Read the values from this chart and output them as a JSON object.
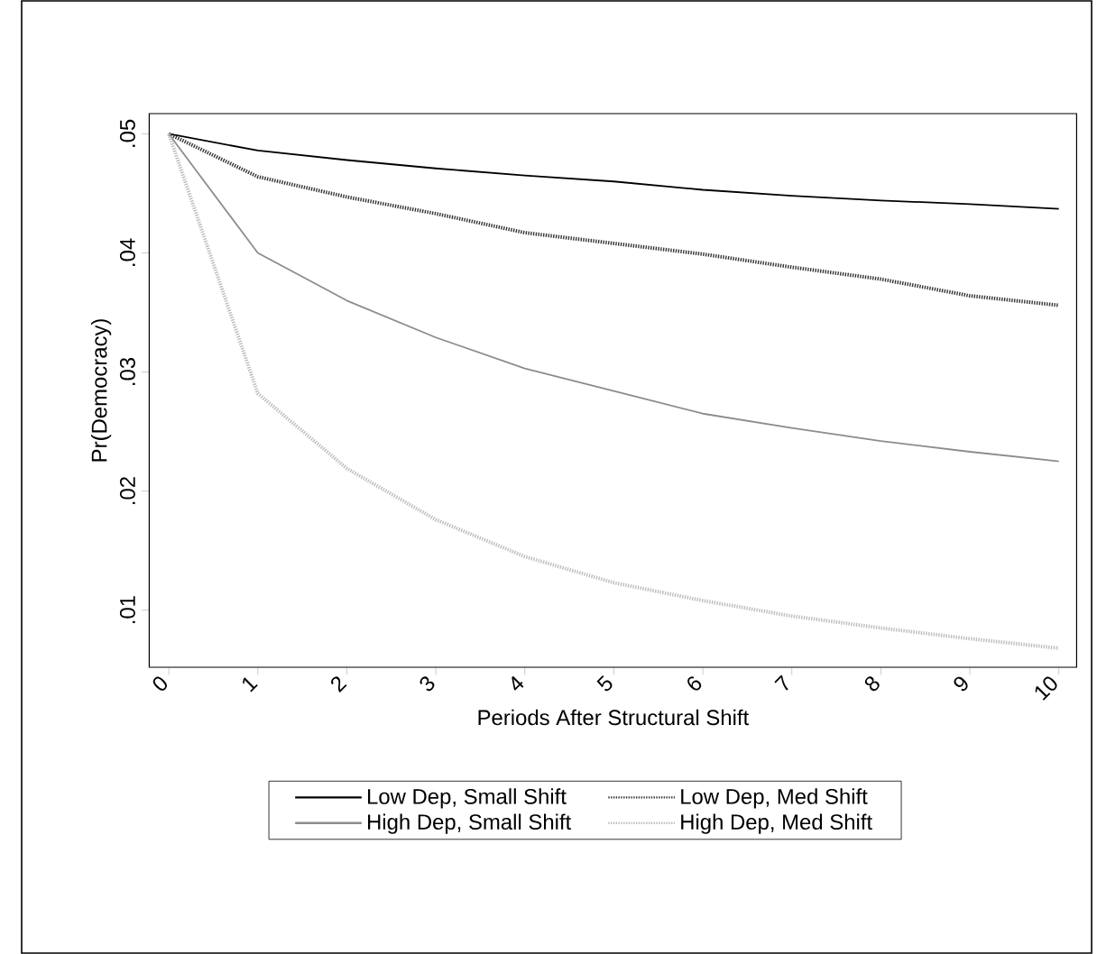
{
  "chart_data": {
    "type": "line",
    "xlabel": "Periods After Structural Shift",
    "ylabel": "Pr(Democracy)",
    "x": [
      0,
      1,
      2,
      3,
      4,
      5,
      6,
      7,
      8,
      9,
      10
    ],
    "series": [
      {
        "name": "Low Dep, Small Shift",
        "color": "#000000",
        "line_style": "solid",
        "values": [
          0.05,
          0.0486,
          0.0478,
          0.0471,
          0.0465,
          0.046,
          0.0453,
          0.0448,
          0.0444,
          0.0441,
          0.0437
        ]
      },
      {
        "name": "Low Dep, Med Shift",
        "color": "#333333",
        "line_style": "dotted",
        "values": [
          0.05,
          0.0464,
          0.0447,
          0.0433,
          0.0417,
          0.0408,
          0.0399,
          0.0388,
          0.0378,
          0.0364,
          0.0356
        ]
      },
      {
        "name": "High Dep, Small Shift",
        "color": "#8c8c8c",
        "line_style": "solid",
        "values": [
          0.05,
          0.04,
          0.036,
          0.0329,
          0.0303,
          0.0284,
          0.0265,
          0.0253,
          0.0242,
          0.0233,
          0.0225
        ]
      },
      {
        "name": "High Dep, Med Shift",
        "color": "#bdbdbd",
        "line_style": "dotted",
        "values": [
          0.05,
          0.0282,
          0.0219,
          0.0176,
          0.0145,
          0.0123,
          0.0108,
          0.0095,
          0.0085,
          0.0076,
          0.0068
        ]
      }
    ],
    "xlim": [
      -0.22,
      10.2
    ],
    "ylim": [
      0.0052,
      0.0517
    ],
    "xticks": [
      0,
      1,
      2,
      3,
      4,
      5,
      6,
      7,
      8,
      9,
      10
    ],
    "yticks": [
      {
        "value": 0.01,
        "label": ".01"
      },
      {
        "value": 0.02,
        "label": ".02"
      },
      {
        "value": 0.03,
        "label": ".03"
      },
      {
        "value": 0.04,
        "label": ".04"
      },
      {
        "value": 0.05,
        "label": ".05"
      }
    ],
    "grid": false,
    "legend": "bottom",
    "marker": "none"
  }
}
